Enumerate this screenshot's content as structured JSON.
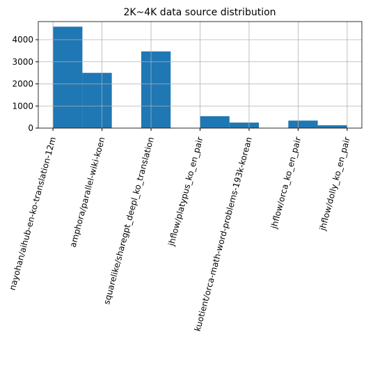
{
  "chart_data": {
    "type": "histogram",
    "title": "2K~4K data source distribution",
    "bins": [
      0,
      0.6,
      1.2,
      1.8,
      2.4,
      3.0,
      3.6,
      4.2,
      4.8,
      5.4,
      6.0
    ],
    "values": [
      4590,
      2500,
      0,
      3470,
      0,
      540,
      250,
      0,
      340,
      130
    ],
    "color": "#1f77b4",
    "xlim": [
      -0.3,
      6.3
    ],
    "xticks": [
      {
        "value": 0,
        "label": "nayohan/aihub-en-ko-translation-12m"
      },
      {
        "value": 1,
        "label": "amphora/parallel-wiki-koen"
      },
      {
        "value": 2,
        "label": "squarelike/sharegpt_deepl_ko_translation"
      },
      {
        "value": 3,
        "label": "jhflow/platypus_ko_en_pair"
      },
      {
        "value": 4,
        "label": "kuotient/orca-math-word-problems-193k-korean"
      },
      {
        "value": 5,
        "label": "jhflow/orca_ko_en_pair"
      },
      {
        "value": 6,
        "label": "jhflow/dolly_ko_en_pair"
      }
    ],
    "ylim": [
      0,
      4820
    ],
    "yticks": [
      0,
      1000,
      2000,
      3000,
      4000
    ],
    "grid": true
  }
}
